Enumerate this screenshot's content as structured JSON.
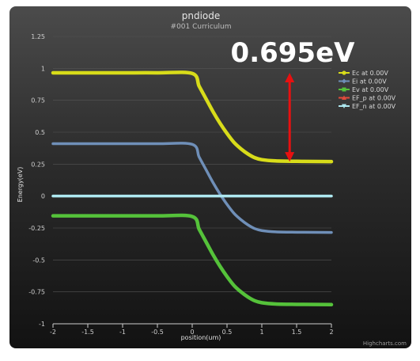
{
  "chart_data": {
    "type": "line",
    "title": "pndiode",
    "subtitle": "#001 Curriculum",
    "xlabel": "position(um)",
    "ylabel": "Energy(eV)",
    "xlim": [
      -2,
      2
    ],
    "ylim": [
      -1,
      1.25
    ],
    "x_ticks": [
      -2,
      -1.5,
      -1,
      -0.5,
      0,
      0.5,
      1,
      1.5,
      2
    ],
    "y_ticks": [
      -1,
      -0.75,
      -0.5,
      -0.25,
      0,
      0.25,
      0.5,
      0.75,
      1,
      1.25
    ],
    "x_tick_labels": [
      "-2",
      "-1.5",
      "-1",
      "-0.5",
      "0",
      "0.5",
      "1",
      "1.5",
      "2"
    ],
    "y_tick_labels": [
      "-1",
      "-0.75",
      "-0.5",
      "-0.25",
      "0",
      "0.25",
      "0.5",
      "0.75",
      "1",
      "1.25"
    ],
    "grid": "horizontal",
    "legend_position": "right",
    "series": [
      {
        "name": "Ec at 0.00V",
        "color": "#d8dc1a",
        "marker": "circle",
        "x": [
          -2.0,
          -1.5,
          -1.0,
          -0.5,
          0.0,
          0.1,
          0.2,
          0.3,
          0.4,
          0.5,
          0.6,
          0.7,
          0.8,
          0.9,
          1.0,
          1.2,
          1.5,
          1.8,
          2.0
        ],
        "y": [
          0.965,
          0.965,
          0.965,
          0.965,
          0.96,
          0.86,
          0.76,
          0.66,
          0.57,
          0.49,
          0.42,
          0.37,
          0.33,
          0.3,
          0.285,
          0.275,
          0.272,
          0.271,
          0.27
        ]
      },
      {
        "name": "Ei at 0.00V",
        "color": "#6f8fb8",
        "marker": "diamond",
        "x": [
          -2.0,
          -1.5,
          -1.0,
          -0.5,
          0.0,
          0.1,
          0.2,
          0.3,
          0.4,
          0.5,
          0.6,
          0.7,
          0.8,
          0.9,
          1.0,
          1.2,
          1.5,
          1.8,
          2.0
        ],
        "y": [
          0.41,
          0.41,
          0.41,
          0.41,
          0.405,
          0.305,
          0.205,
          0.105,
          0.015,
          -0.065,
          -0.135,
          -0.185,
          -0.225,
          -0.255,
          -0.27,
          -0.28,
          -0.283,
          -0.284,
          -0.285
        ]
      },
      {
        "name": "Ev at 0.00V",
        "color": "#55c23a",
        "marker": "square",
        "x": [
          -2.0,
          -1.5,
          -1.0,
          -0.5,
          0.0,
          0.1,
          0.2,
          0.3,
          0.4,
          0.5,
          0.6,
          0.7,
          0.8,
          0.9,
          1.0,
          1.2,
          1.5,
          1.8,
          2.0
        ],
        "y": [
          -0.155,
          -0.155,
          -0.155,
          -0.155,
          -0.16,
          -0.26,
          -0.36,
          -0.46,
          -0.55,
          -0.63,
          -0.7,
          -0.75,
          -0.79,
          -0.82,
          -0.835,
          -0.845,
          -0.848,
          -0.849,
          -0.85
        ]
      },
      {
        "name": "EF_p at 0.00V",
        "color": "#e04a3c",
        "marker": "triangle",
        "x": [
          -2.0,
          2.0
        ],
        "y": [
          0.0,
          0.0
        ]
      },
      {
        "name": "EF_n at 0.00V",
        "color": "#aee8f0",
        "marker": "triangle-down",
        "x": [
          -2.0,
          2.0
        ],
        "y": [
          0.0,
          0.0
        ]
      }
    ],
    "annotation": {
      "text": "0.695eV",
      "arrow_color": "#e81010",
      "arrow_x": 1.4,
      "arrow_y_from": 0.965,
      "arrow_y_to": 0.27
    },
    "credits": "Highcharts.com"
  }
}
